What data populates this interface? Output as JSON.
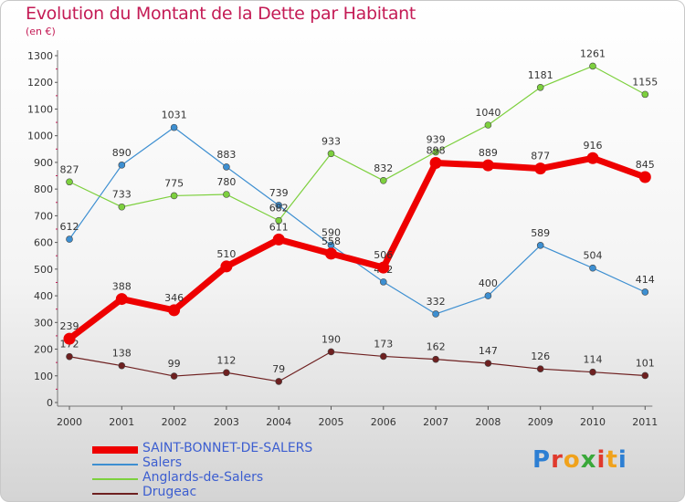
{
  "title": "Evolution du Montant de la Dette par Habitant",
  "subtitle": "(en €)",
  "logo": "Proxiti",
  "chart_data": {
    "type": "line",
    "title": "Evolution du Montant de la Dette par Habitant",
    "ylabel": "(en €)",
    "xlabel": "",
    "categories": [
      "2000",
      "2001",
      "2002",
      "2003",
      "2004",
      "2005",
      "2006",
      "2007",
      "2008",
      "2009",
      "2010",
      "2011"
    ],
    "ylim": [
      0,
      1300
    ],
    "yticks": [
      0,
      100,
      200,
      300,
      400,
      500,
      600,
      700,
      800,
      900,
      1000,
      1100,
      1200,
      1300
    ],
    "grid": false,
    "legend_position": "bottom-left",
    "series": [
      {
        "name": "SAINT-BONNET-DE-SALERS",
        "color": "#ee0000",
        "values": [
          239,
          388,
          346,
          510,
          611,
          558,
          506,
          898,
          889,
          877,
          916,
          845
        ]
      },
      {
        "name": "Salers",
        "color": "#3d8fd1",
        "values": [
          612,
          890,
          1031,
          883,
          739,
          590,
          452,
          332,
          400,
          589,
          504,
          414
        ]
      },
      {
        "name": "Anglards-de-Salers",
        "color": "#7dd03e",
        "values": [
          827,
          733,
          775,
          780,
          682,
          933,
          832,
          939,
          1040,
          1181,
          1261,
          1155
        ]
      },
      {
        "name": "Drugeac",
        "color": "#6e2020",
        "values": [
          172,
          138,
          99,
          112,
          79,
          190,
          173,
          162,
          147,
          126,
          114,
          101
        ]
      }
    ]
  }
}
